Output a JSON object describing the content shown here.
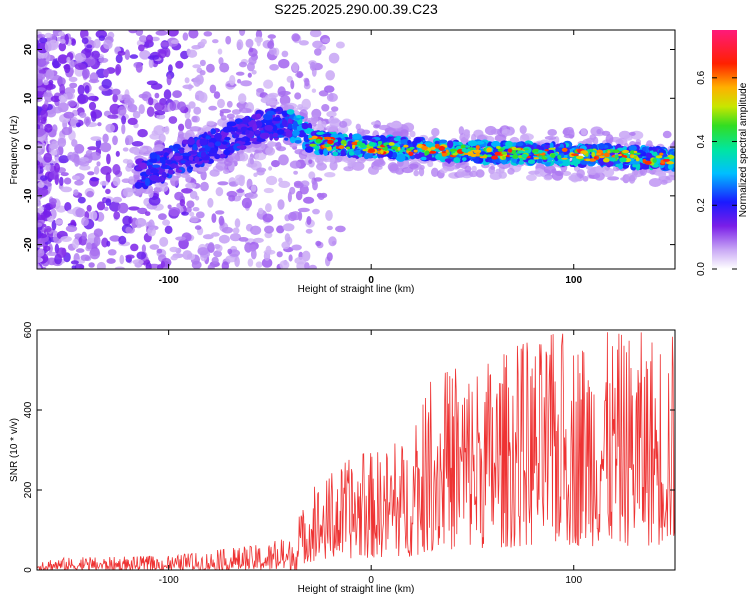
{
  "title": "S225.2025.290.00.39.C23",
  "chart_data": [
    {
      "type": "heatmap",
      "name": "spectrogram",
      "xlabel": "Height of straight line (km)",
      "ylabel": "Frequency (Hz)",
      "xlim": [
        -165,
        150
      ],
      "ylim": [
        -25,
        24
      ],
      "xticks": [
        -100,
        0,
        100
      ],
      "yticks": [
        -20,
        -10,
        0,
        10,
        20
      ],
      "colorbar": {
        "label": "Normalized spectral amplitude",
        "range": [
          0.0,
          0.75
        ],
        "ticks": [
          "0.0",
          "0.2",
          "0.4",
          "0.6"
        ],
        "tick_values": [
          0.0,
          0.2,
          0.4,
          0.6
        ]
      },
      "ridge": [
        {
          "x": -110,
          "y": -5
        },
        {
          "x": -80,
          "y": 0
        },
        {
          "x": -50,
          "y": 5
        },
        {
          "x": -35,
          "y": 4
        },
        {
          "x": -30,
          "y": 1
        },
        {
          "x": 0,
          "y": 0
        },
        {
          "x": 50,
          "y": -1
        },
        {
          "x": 100,
          "y": -1.5
        },
        {
          "x": 150,
          "y": -2.5
        }
      ]
    },
    {
      "type": "line",
      "name": "snr",
      "xlabel": "Height of straight line (km)",
      "ylabel": "SNR (10 * v/v)",
      "xlim": [
        -165,
        150
      ],
      "ylim": [
        0,
        600
      ],
      "xticks": [
        -100,
        0,
        100
      ],
      "yticks": [
        0,
        200,
        400,
        600
      ],
      "color": "#ee3333",
      "envelope": [
        {
          "x": -165,
          "max": 30
        },
        {
          "x": -100,
          "max": 35
        },
        {
          "x": -60,
          "max": 60
        },
        {
          "x": -40,
          "max": 80
        },
        {
          "x": -30,
          "max": 200
        },
        {
          "x": -10,
          "max": 280
        },
        {
          "x": 20,
          "max": 330
        },
        {
          "x": 30,
          "max": 480
        },
        {
          "x": 60,
          "max": 540
        },
        {
          "x": 90,
          "max": 590
        },
        {
          "x": 145,
          "max": 600
        }
      ]
    }
  ]
}
